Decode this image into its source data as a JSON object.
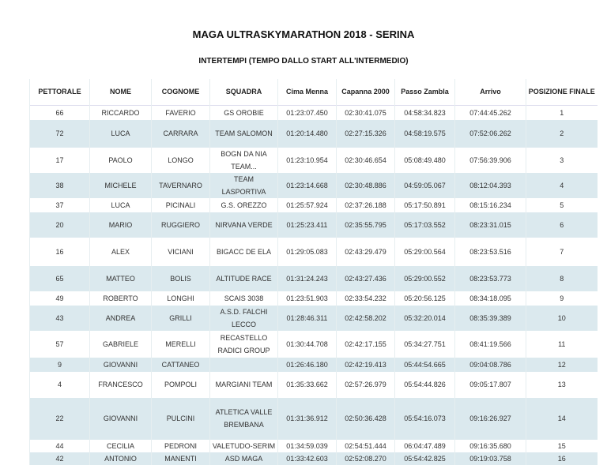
{
  "title": "MAGA ULTRASKYMARATHON 2018 - SERINA",
  "subtitle": "INTERTEMPI (TEMPO DALLO START ALL'INTERMEDIO)",
  "columns": [
    "PETTORALE",
    "NOME",
    "COGNOME",
    "SQUADRA",
    "Cima Menna",
    "Capanna 2000",
    "Passo Zambla",
    "Arrivo",
    "POSIZIONE FINALE"
  ],
  "rows": [
    [
      "66",
      "RICCARDO",
      "FAVERIO",
      "GS OROBIE",
      "01:23:07.450",
      "02:30:41.075",
      "04:58:34.823",
      "07:44:45.262",
      "1"
    ],
    [
      "72",
      "LUCA",
      "CARRARA",
      "TEAM SALOMON",
      "01:20:14.480",
      "02:27:15.326",
      "04:58:19.575",
      "07:52:06.262",
      "2"
    ],
    [
      "17",
      "PAOLO",
      "LONGO",
      "BOGN DA NIA TEAM...",
      "01:23:10.954",
      "02:30:46.654",
      "05:08:49.480",
      "07:56:39.906",
      "3"
    ],
    [
      "38",
      "MICHELE",
      "TAVERNARO",
      "TEAM LASPORTIVA",
      "01:23:14.668",
      "02:30:48.886",
      "04:59:05.067",
      "08:12:04.393",
      "4"
    ],
    [
      "37",
      "LUCA",
      "PICINALI",
      "G.S. OREZZO",
      "01:25:57.924",
      "02:37:26.188",
      "05:17:50.891",
      "08:15:16.234",
      "5"
    ],
    [
      "20",
      "MARIO",
      "RUGGIERO",
      "NIRVANA VERDE",
      "01:25:23.411",
      "02:35:55.795",
      "05:17:03.552",
      "08:23:31.015",
      "6"
    ],
    [
      "16",
      "ALEX",
      "VICIANI",
      "BIGACC DE ELA",
      "01:29:05.083",
      "02:43:29.479",
      "05:29:00.564",
      "08:23:53.516",
      "7"
    ],
    [
      "65",
      "MATTEO",
      "BOLIS",
      "ALTITUDE RACE",
      "01:31:24.243",
      "02:43:27.436",
      "05:29:00.552",
      "08:23:53.773",
      "8"
    ],
    [
      "49",
      "ROBERTO",
      "LONGHI",
      "SCAIS 3038",
      "01:23:51.903",
      "02:33:54.232",
      "05:20:56.125",
      "08:34:18.095",
      "9"
    ],
    [
      "43",
      "ANDREA",
      "GRILLI",
      "A.S.D. FALCHI LECCO",
      "01:28:46.311",
      "02:42:58.202",
      "05:32:20.014",
      "08:35:39.389",
      "10"
    ],
    [
      "57",
      "GABRIELE",
      "MERELLI",
      "RECASTELLO RADICI GROUP",
      "01:30:44.708",
      "02:42:17.155",
      "05:34:27.751",
      "08:41:19.566",
      "11"
    ],
    [
      "9",
      "GIOVANNI",
      "CATTANEO",
      "",
      "01:26:46.180",
      "02:42:19.413",
      "05:44:54.665",
      "09:04:08.786",
      "12"
    ],
    [
      "4",
      "FRANCESCO",
      "POMPOLI",
      "MARGIANI TEAM",
      "01:35:33.662",
      "02:57:26.979",
      "05:54:44.826",
      "09:05:17.807",
      "13"
    ],
    [
      "22",
      "GIOVANNI",
      "PULCINI",
      "ATLETICA VALLE BREMBANA",
      "01:31:36.912",
      "02:50:36.428",
      "05:54:16.073",
      "09:16:26.927",
      "14"
    ],
    [
      "44",
      "CECILIA",
      "PEDRONI",
      "VALETUDO-SERIM",
      "01:34:59.039",
      "02:54:51.444",
      "06:04:47.489",
      "09:16:35.680",
      "15"
    ],
    [
      "42",
      "ANTONIO",
      "MANENTI",
      "ASD MAGA",
      "01:33:42.603",
      "02:52:08.270",
      "05:54:42.825",
      "09:19:03.758",
      "16"
    ]
  ]
}
